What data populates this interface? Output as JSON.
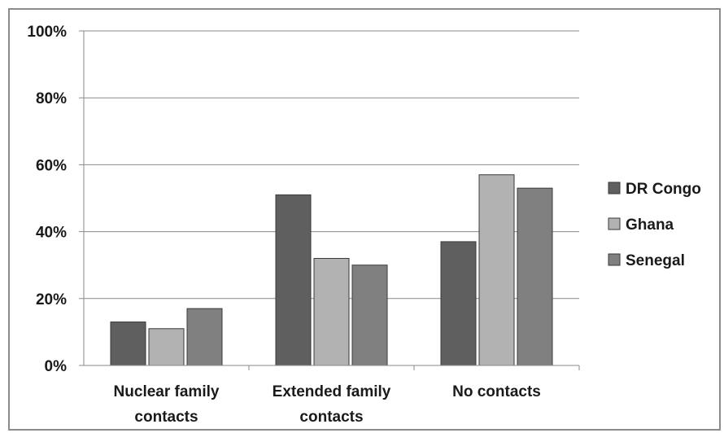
{
  "chart_data": {
    "type": "bar",
    "categories": [
      [
        "Nuclear family",
        "contacts"
      ],
      [
        "Extended family",
        "contacts"
      ],
      [
        "No contacts"
      ]
    ],
    "series": [
      {
        "name": "DR Congo",
        "values": [
          13,
          51,
          37
        ],
        "color": "#5f5f5f"
      },
      {
        "name": "Ghana",
        "values": [
          11,
          32,
          57
        ],
        "color": "#b2b2b2"
      },
      {
        "name": "Senegal",
        "values": [
          17,
          30,
          53
        ],
        "color": "#808080"
      }
    ],
    "yticks": [
      "0%",
      "20%",
      "40%",
      "60%",
      "80%",
      "100%"
    ],
    "ylim": [
      0,
      100
    ],
    "grid": true,
    "legend_position": "right"
  }
}
